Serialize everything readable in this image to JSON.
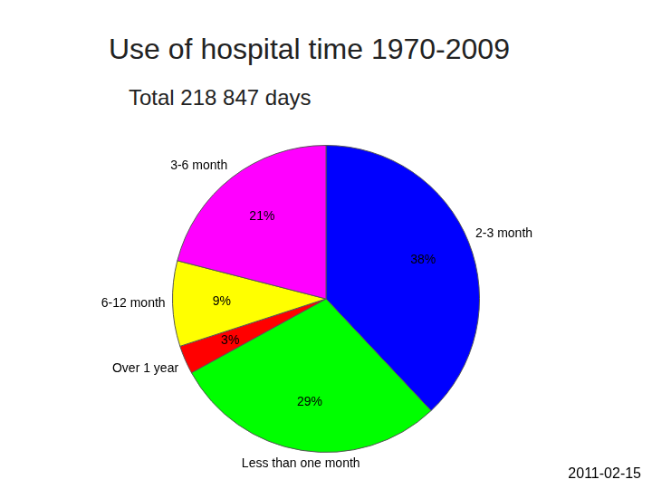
{
  "chart_data": {
    "type": "pie",
    "title": "Use of hospital time 1970-2009",
    "subtitle": "Total 218 847 days",
    "categories": [
      "2-3 month",
      "Less than one month",
      "Over 1 year",
      "6-12 month",
      "3-6 month"
    ],
    "values": [
      38,
      29,
      3,
      9,
      21
    ],
    "value_labels": [
      "38%",
      "29%",
      "3%",
      "9%",
      "21%"
    ],
    "colors": [
      "#0000ff",
      "#00ff00",
      "#ff0000",
      "#ffff00",
      "#ff00ff"
    ],
    "data_labels": true,
    "annotations": [
      "2011-02-15"
    ]
  }
}
